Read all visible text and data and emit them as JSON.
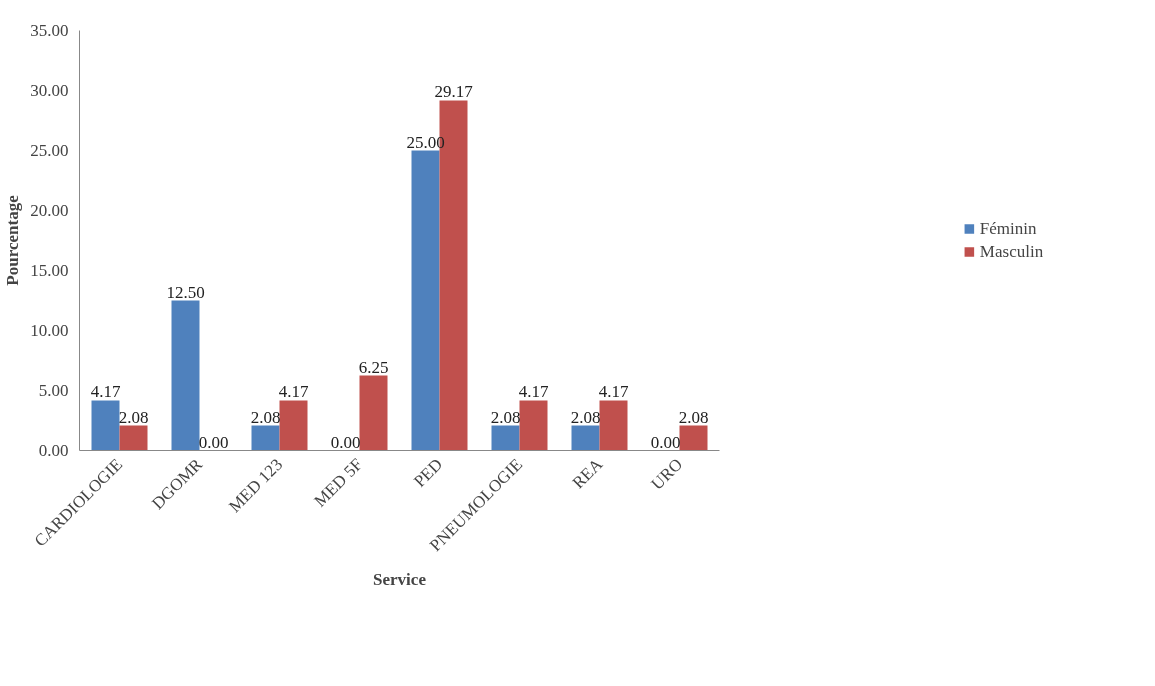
{
  "chart_data": {
    "type": "bar",
    "xlabel": "Service",
    "ylabel": "Pourcentage",
    "categories": [
      "CARDIOLOGIE",
      "DGOMR",
      "MED 123",
      "MED 5F",
      "PED",
      "PNEUMOLOGIE",
      "REA",
      "URO"
    ],
    "series": [
      {
        "name": "Féminin",
        "color": "#4f81bd",
        "values": [
          4.17,
          12.5,
          2.08,
          0,
          25,
          2.08,
          2.08,
          0
        ],
        "value_labels": [
          "4.17",
          "12.50",
          "2.08",
          "0.00",
          "25.00",
          "2.08",
          "2.08",
          "0.00"
        ]
      },
      {
        "name": "Masculin",
        "color": "#c0504d",
        "values": [
          2.08,
          0,
          4.17,
          6.25,
          29.17,
          4.17,
          4.17,
          2.08
        ],
        "value_labels": [
          "2.08",
          "0.00",
          "4.17",
          "6.25",
          "29.17",
          "4.17",
          "4.17",
          "2.08"
        ]
      }
    ],
    "ylim": [
      0,
      35
    ],
    "yticks": [
      {
        "value": 0,
        "label": "0.00"
      },
      {
        "value": 5,
        "label": "5.00"
      },
      {
        "value": 10,
        "label": "10.00"
      },
      {
        "value": 15,
        "label": "15.00"
      },
      {
        "value": 20,
        "label": "20.00"
      },
      {
        "value": 25,
        "label": "25.00"
      },
      {
        "value": 30,
        "label": "30.00"
      },
      {
        "value": 35,
        "label": "35.00"
      }
    ],
    "grid": false,
    "legend": "right"
  }
}
